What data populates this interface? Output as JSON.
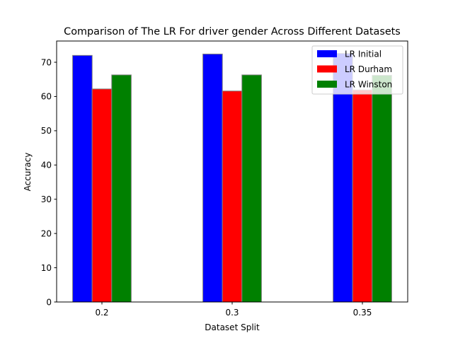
{
  "chart_data": {
    "type": "bar",
    "title": "Comparison of The LR For driver gender Across Different Datasets",
    "xlabel": "Dataset Split",
    "ylabel": "Accuracy",
    "categories": [
      "0.2",
      "0.3",
      "0.35"
    ],
    "series": [
      {
        "name": "LR Initial",
        "values": [
          72.0,
          72.4,
          72.6
        ],
        "color": "#0000ff"
      },
      {
        "name": "LR Durham",
        "values": [
          62.2,
          61.6,
          61.9
        ],
        "color": "#ff0000"
      },
      {
        "name": "LR Winston",
        "values": [
          66.3,
          66.3,
          66.2
        ],
        "color": "#008000"
      }
    ],
    "ylim": [
      0,
      76.2
    ],
    "yticks": [
      0,
      10,
      20,
      30,
      40,
      50,
      60,
      70
    ],
    "bar_edge_color": "#808080",
    "legend_position": "top-right",
    "grid": false
  }
}
